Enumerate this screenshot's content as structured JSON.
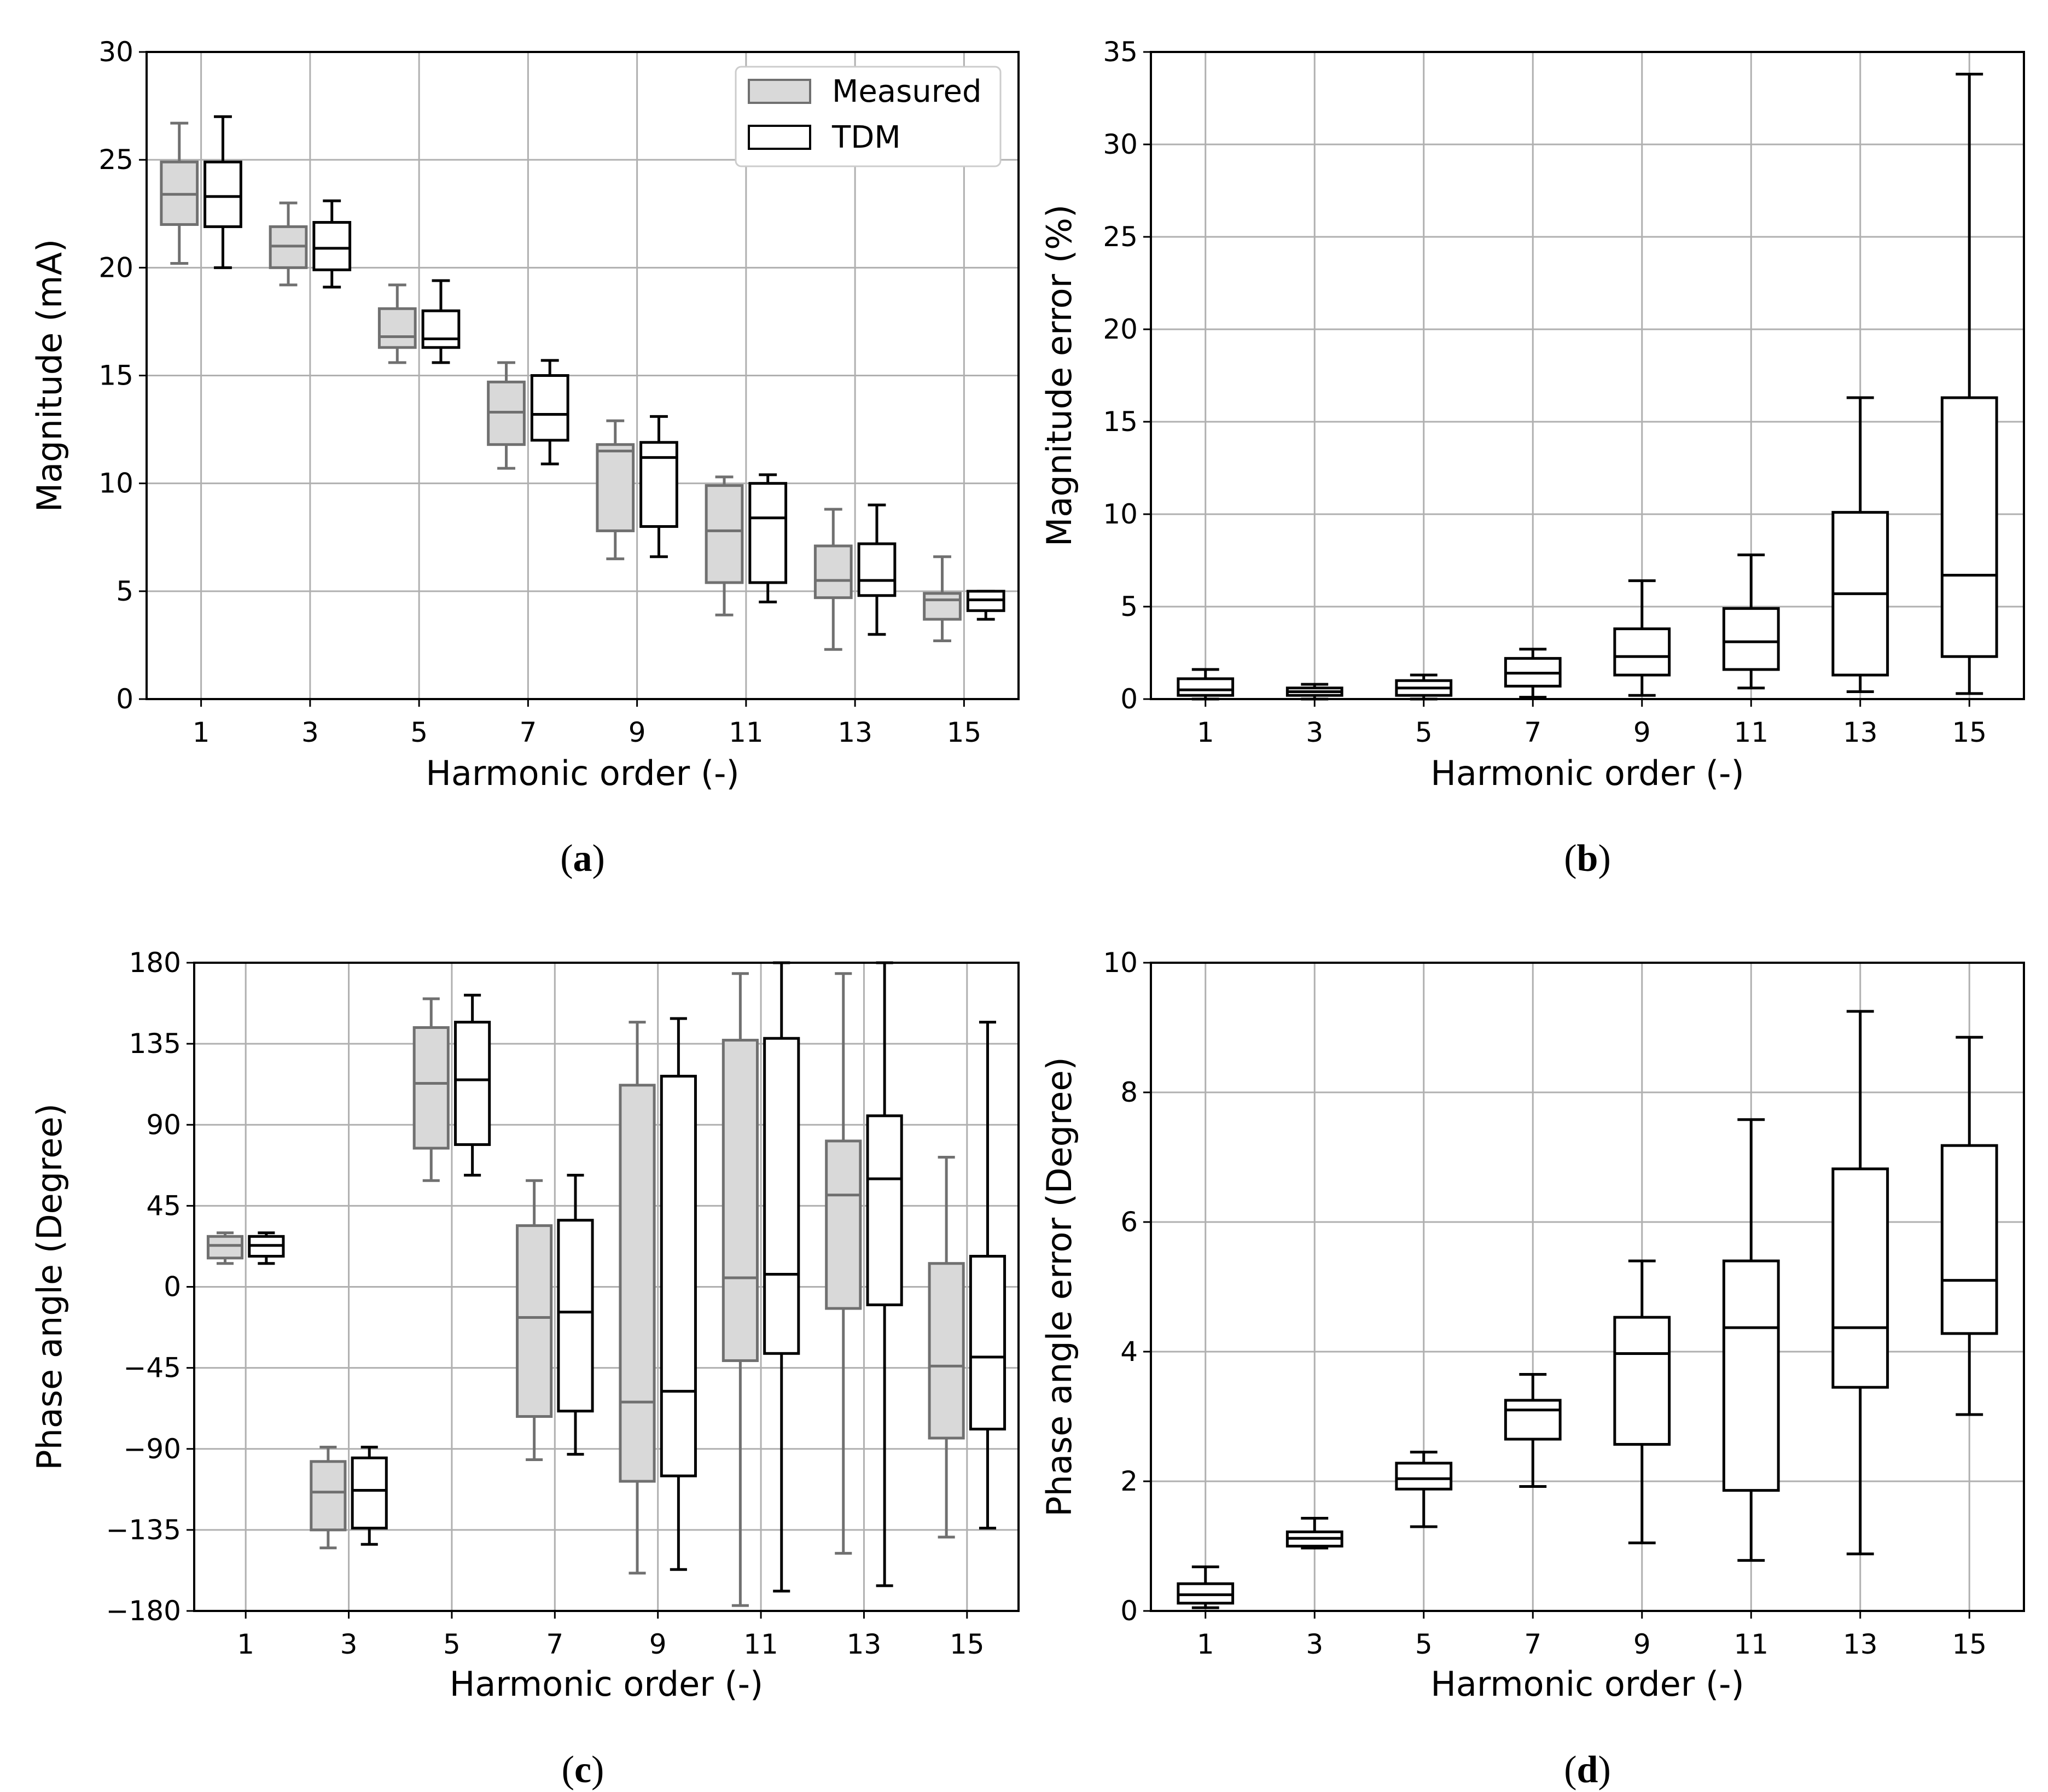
{
  "colors": {
    "measured_fill": "#d9d9d9",
    "measured_stroke": "#707070",
    "tdm_fill": "#ffffff",
    "tdm_stroke": "#000000",
    "grid": "#b0b0b0"
  },
  "legend": {
    "measured": "Measured",
    "tdm": "TDM"
  },
  "chart_data": [
    {
      "id": "a",
      "type": "box",
      "caption": "a",
      "xlabel": "Harmonic order (-)",
      "ylabel": "Magnitude (mA)",
      "ylim": [
        0,
        30
      ],
      "yticks": [
        "0",
        "5",
        "10",
        "15",
        "20",
        "25",
        "30"
      ],
      "categories": [
        "1",
        "3",
        "5",
        "7",
        "9",
        "11",
        "13",
        "15"
      ],
      "legend_position": "top-right",
      "series": [
        {
          "name": "Measured",
          "boxes": [
            {
              "min": 20.2,
              "q1": 22.0,
              "median": 23.4,
              "q3": 24.9,
              "max": 26.7
            },
            {
              "min": 19.2,
              "q1": 20.0,
              "median": 21.0,
              "q3": 21.9,
              "max": 23.0
            },
            {
              "min": 15.6,
              "q1": 16.3,
              "median": 16.8,
              "q3": 18.1,
              "max": 19.2
            },
            {
              "min": 10.7,
              "q1": 11.8,
              "median": 13.3,
              "q3": 14.7,
              "max": 15.6
            },
            {
              "min": 6.5,
              "q1": 7.8,
              "median": 11.5,
              "q3": 11.8,
              "max": 12.9
            },
            {
              "min": 3.9,
              "q1": 5.4,
              "median": 7.8,
              "q3": 9.9,
              "max": 10.3
            },
            {
              "min": 2.3,
              "q1": 4.7,
              "median": 5.5,
              "q3": 7.1,
              "max": 8.8
            },
            {
              "min": 2.7,
              "q1": 3.7,
              "median": 4.6,
              "q3": 4.9,
              "max": 6.6
            }
          ]
        },
        {
          "name": "TDM",
          "boxes": [
            {
              "min": 20.0,
              "q1": 21.9,
              "median": 23.3,
              "q3": 24.9,
              "max": 27.0
            },
            {
              "min": 19.1,
              "q1": 19.9,
              "median": 20.9,
              "q3": 22.1,
              "max": 23.1
            },
            {
              "min": 15.6,
              "q1": 16.3,
              "median": 16.7,
              "q3": 18.0,
              "max": 19.4
            },
            {
              "min": 10.9,
              "q1": 12.0,
              "median": 13.2,
              "q3": 15.0,
              "max": 15.7
            },
            {
              "min": 6.6,
              "q1": 8.0,
              "median": 11.2,
              "q3": 11.9,
              "max": 13.1
            },
            {
              "min": 4.5,
              "q1": 5.4,
              "median": 8.4,
              "q3": 10.0,
              "max": 10.4
            },
            {
              "min": 3.0,
              "q1": 4.8,
              "median": 5.5,
              "q3": 7.2,
              "max": 9.0
            },
            {
              "min": 3.7,
              "q1": 4.1,
              "median": 4.6,
              "q3": 5.0,
              "max": 5.0
            }
          ]
        }
      ]
    },
    {
      "id": "b",
      "type": "box",
      "caption": "b",
      "xlabel": "Harmonic order (-)",
      "ylabel": "Magnitude error (%)",
      "ylim": [
        0,
        35
      ],
      "yticks": [
        "0",
        "5",
        "10",
        "15",
        "20",
        "25",
        "30",
        "35"
      ],
      "categories": [
        "1",
        "3",
        "5",
        "7",
        "9",
        "11",
        "13",
        "15"
      ],
      "series": [
        {
          "name": "TDM",
          "boxes": [
            {
              "min": 0.0,
              "q1": 0.2,
              "median": 0.5,
              "q3": 1.1,
              "max": 1.6
            },
            {
              "min": 0.0,
              "q1": 0.2,
              "median": 0.4,
              "q3": 0.6,
              "max": 0.8
            },
            {
              "min": 0.0,
              "q1": 0.2,
              "median": 0.6,
              "q3": 1.0,
              "max": 1.3
            },
            {
              "min": 0.1,
              "q1": 0.7,
              "median": 1.4,
              "q3": 2.2,
              "max": 2.7
            },
            {
              "min": 0.2,
              "q1": 1.3,
              "median": 2.3,
              "q3": 3.8,
              "max": 6.4
            },
            {
              "min": 0.6,
              "q1": 1.6,
              "median": 3.1,
              "q3": 4.9,
              "max": 7.8
            },
            {
              "min": 0.4,
              "q1": 1.3,
              "median": 5.7,
              "q3": 10.1,
              "max": 16.3
            },
            {
              "min": 0.3,
              "q1": 2.3,
              "median": 6.7,
              "q3": 16.3,
              "max": 33.8
            }
          ]
        }
      ]
    },
    {
      "id": "c",
      "type": "box",
      "caption": "c",
      "xlabel": "Harmonic order (-)",
      "ylabel": "Phase angle (Degree)",
      "ylim": [
        -180,
        180
      ],
      "yticks": [
        "−180",
        "−135",
        "−90",
        "−45",
        "0",
        "45",
        "90",
        "135",
        "180"
      ],
      "categories": [
        "1",
        "3",
        "5",
        "7",
        "9",
        "11",
        "13",
        "15"
      ],
      "series": [
        {
          "name": "Measured",
          "boxes": [
            {
              "min": 13,
              "q1": 16,
              "median": 23,
              "q3": 28,
              "max": 30
            },
            {
              "min": -145,
              "q1": -135,
              "median": -114,
              "q3": -97,
              "max": -89
            },
            {
              "min": 59,
              "q1": 77,
              "median": 113,
              "q3": 144,
              "max": 160
            },
            {
              "min": -96,
              "q1": -72,
              "median": -17,
              "q3": 34,
              "max": 59
            },
            {
              "min": -159,
              "q1": -108,
              "median": -64,
              "q3": 112,
              "max": 147
            },
            {
              "min": -177,
              "q1": -41,
              "median": 5,
              "q3": 137,
              "max": 174
            },
            {
              "min": -148,
              "q1": -12,
              "median": 51,
              "q3": 81,
              "max": 174
            },
            {
              "min": -139,
              "q1": -84,
              "median": -44,
              "q3": 13,
              "max": 72
            }
          ]
        },
        {
          "name": "TDM",
          "boxes": [
            {
              "min": 13,
              "q1": 17,
              "median": 23,
              "q3": 28,
              "max": 30
            },
            {
              "min": -143,
              "q1": -134,
              "median": -113,
              "q3": -95,
              "max": -89
            },
            {
              "min": 62,
              "q1": 79,
              "median": 115,
              "q3": 147,
              "max": 162
            },
            {
              "min": -93,
              "q1": -69,
              "median": -14,
              "q3": 37,
              "max": 62
            },
            {
              "min": -157,
              "q1": -105,
              "median": -58,
              "q3": 117,
              "max": 149
            },
            {
              "min": -169,
              "q1": -37,
              "median": 7,
              "q3": 138,
              "max": 180
            },
            {
              "min": -166,
              "q1": -10,
              "median": 60,
              "q3": 95,
              "max": 180
            },
            {
              "min": -134,
              "q1": -79,
              "median": -39,
              "q3": 17,
              "max": 147
            }
          ]
        }
      ]
    },
    {
      "id": "d",
      "type": "box",
      "caption": "d",
      "xlabel": "Harmonic order (-)",
      "ylabel": "Phase angle error (Degree)",
      "ylim": [
        0,
        10
      ],
      "yticks": [
        "0",
        "2",
        "4",
        "6",
        "8",
        "10"
      ],
      "categories": [
        "1",
        "3",
        "5",
        "7",
        "9",
        "11",
        "13",
        "15"
      ],
      "series": [
        {
          "name": "TDM",
          "boxes": [
            {
              "min": 0.05,
              "q1": 0.12,
              "median": 0.25,
              "q3": 0.42,
              "max": 0.68
            },
            {
              "min": 0.97,
              "q1": 1.0,
              "median": 1.12,
              "q3": 1.22,
              "max": 1.43
            },
            {
              "min": 1.3,
              "q1": 1.88,
              "median": 2.04,
              "q3": 2.28,
              "max": 2.45
            },
            {
              "min": 1.92,
              "q1": 2.65,
              "median": 3.1,
              "q3": 3.25,
              "max": 3.65
            },
            {
              "min": 1.05,
              "q1": 2.57,
              "median": 3.97,
              "q3": 4.53,
              "max": 5.4
            },
            {
              "min": 0.78,
              "q1": 1.86,
              "median": 4.37,
              "q3": 5.4,
              "max": 7.58
            },
            {
              "min": 0.88,
              "q1": 3.45,
              "median": 4.37,
              "q3": 6.82,
              "max": 9.25
            },
            {
              "min": 3.03,
              "q1": 4.28,
              "median": 5.1,
              "q3": 7.18,
              "max": 8.85
            }
          ]
        }
      ]
    }
  ]
}
